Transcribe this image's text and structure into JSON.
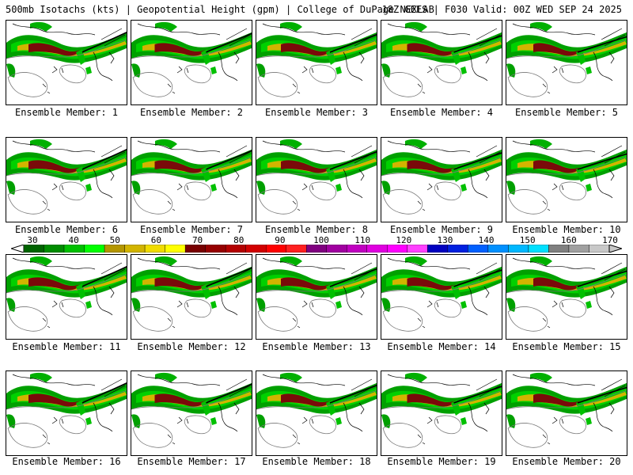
{
  "header": {
    "left_title": "500mb Isotachs (kts) | Geopotential Height (gpm) | College of DuPage NEXLAB",
    "right_title": "18Z GEFS | F030 Valid: 00Z WED SEP 24 2025"
  },
  "panels": [
    {
      "label": "Ensemble Member: 1"
    },
    {
      "label": "Ensemble Member: 2"
    },
    {
      "label": "Ensemble Member: 3"
    },
    {
      "label": "Ensemble Member: 4"
    },
    {
      "label": "Ensemble Member: 5"
    },
    {
      "label": "Ensemble Member: 6"
    },
    {
      "label": "Ensemble Member: 7"
    },
    {
      "label": "Ensemble Member: 8"
    },
    {
      "label": "Ensemble Member: 9"
    },
    {
      "label": "Ensemble Member: 10"
    },
    {
      "label": "Ensemble Member: 11"
    },
    {
      "label": "Ensemble Member: 12"
    },
    {
      "label": "Ensemble Member: 13"
    },
    {
      "label": "Ensemble Member: 14"
    },
    {
      "label": "Ensemble Member: 15"
    },
    {
      "label": "Ensemble Member: 16"
    },
    {
      "label": "Ensemble Member: 17"
    },
    {
      "label": "Ensemble Member: 18"
    },
    {
      "label": "Ensemble Member: 19"
    },
    {
      "label": "Ensemble Member: 20"
    }
  ],
  "colorbar": {
    "labels": [
      "30",
      "40",
      "50",
      "60",
      "70",
      "80",
      "90",
      "100",
      "110",
      "120",
      "130",
      "140",
      "150",
      "160",
      "170"
    ],
    "colors": [
      "#006400",
      "#008c00",
      "#00c000",
      "#00ff00",
      "#b49600",
      "#d2b400",
      "#f0dc00",
      "#ffff00",
      "#780000",
      "#960000",
      "#b40000",
      "#d20000",
      "#ff0000",
      "#ff2020",
      "#800080",
      "#a000a0",
      "#c000c0",
      "#e000e0",
      "#ff00ff",
      "#ff40ff",
      "#0000c0",
      "#0020e0",
      "#0060ff",
      "#0090ff",
      "#00b8ff",
      "#00e0ff",
      "#808080",
      "#a0a0a0",
      "#c8c8c8"
    ]
  }
}
